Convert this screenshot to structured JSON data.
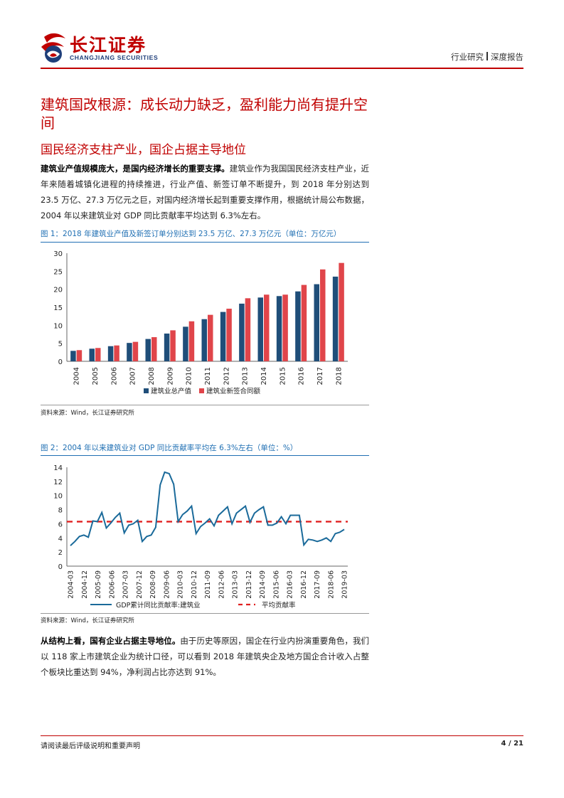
{
  "header": {
    "logo_cn": "长江证券",
    "logo_en": "CHANGJIANG SECURITIES",
    "section": "行业研究",
    "report_type": "深度报告",
    "accent_color": "#c00000"
  },
  "title": "建筑国改根源：成长动力缺乏，盈利能力尚有提升空间",
  "subtitle": "国民经济支柱产业，国企占据主导地位",
  "para1": {
    "lead": "建筑业产值规模庞大，是国内经济增长的重要支撑。",
    "body": "建筑业作为我国国民经济支柱产业，近年来随着城镇化进程的持续推进，行业产值、新签订单不断提升，到 2018 年分别达到 23.5 万亿、27.3 万亿元之巨，对国内经济增长起到重要支撑作用，根据统计局公布数据，2004 年以来建筑业对 GDP 同比贡献率平均达到 6.3%左右。"
  },
  "fig1": {
    "title": "图 1：2018 年建筑业产值及新签订单分别达到 23.5 万亿、27.3 万亿元（单位：万亿元）",
    "source": "资料来源：Wind，长江证券研究所"
  },
  "fig2": {
    "title": "图 2：2004 年以来建筑业对 GDP 同比贡献率平均在 6.3%左右（单位：%）",
    "source": "资料来源：Wind，长江证券研究所"
  },
  "para2": {
    "lead": "从结构上看，国有企业占据主导地位。",
    "body": "由于历史等原因，国企在行业内扮演重要角色，我们以 118 家上市建筑企业为统计口径，可以看到 2018 年建筑央企及地方国企合计收入占整个板块比重达到 94%，净利润占比亦达到 91%。"
  },
  "footer": {
    "disclaimer": "请阅读最后评级说明和重要声明",
    "page": "4 / 21"
  },
  "chart_data": [
    {
      "type": "bar",
      "categories": [
        "2004",
        "2005",
        "2006",
        "2007",
        "2008",
        "2009",
        "2010",
        "2011",
        "2012",
        "2013",
        "2014",
        "2015",
        "2016",
        "2017",
        "2018"
      ],
      "series": [
        {
          "name": "建筑业总产值",
          "color": "#1f4e79",
          "values": [
            2.9,
            3.5,
            4.2,
            5.1,
            6.2,
            7.7,
            9.6,
            11.7,
            13.7,
            16.0,
            17.7,
            18.1,
            19.4,
            21.4,
            23.5
          ]
        },
        {
          "name": "建筑业新签合同额",
          "color": "#e0454a",
          "values": [
            3.1,
            3.7,
            4.4,
            5.4,
            6.7,
            8.6,
            11.1,
            12.9,
            14.6,
            17.5,
            18.5,
            18.5,
            21.2,
            25.5,
            27.3
          ]
        }
      ],
      "ylim": [
        0,
        30
      ],
      "yticks": [
        0,
        5,
        10,
        15,
        20,
        25,
        30
      ],
      "grid": false,
      "legend": "bottom"
    },
    {
      "type": "line",
      "x_ticks": [
        "2004-03",
        "2004-12",
        "2005-09",
        "2006-06",
        "2007-03",
        "2007-12",
        "2008-09",
        "2009-06",
        "2010-03",
        "2010-12",
        "2011-09",
        "2012-06",
        "2013-03",
        "2013-12",
        "2014-09",
        "2015-06",
        "2016-03",
        "2016-12",
        "2017-09",
        "2018-06",
        "2019-03"
      ],
      "series": [
        {
          "name": "GDP累计同比贡献率:建筑业",
          "color": "#1a6a9a",
          "values": [
            2.9,
            3.5,
            4.2,
            4.4,
            4.1,
            6.4,
            6.3,
            7.6,
            5.4,
            6.1,
            6.9,
            7.5,
            4.7,
            5.8,
            6.0,
            6.5,
            3.5,
            4.2,
            4.4,
            5.5,
            11.5,
            13.3,
            13.1,
            11.6,
            6.3,
            7.3,
            7.8,
            8.5,
            4.6,
            5.6,
            6.1,
            6.7,
            5.7,
            7.2,
            7.8,
            8.4,
            6.0,
            7.5,
            8.0,
            8.5,
            6.2,
            7.5,
            8.0,
            8.4,
            5.8,
            5.8,
            6.1,
            7.0,
            6.0,
            7.2,
            7.2,
            7.2,
            3.0,
            3.8,
            3.7,
            3.5,
            3.7,
            4.0,
            3.5,
            4.6,
            4.8,
            5.2
          ]
        },
        {
          "name": "平均贡献率",
          "color": "#e02020",
          "dashed": true,
          "values": [
            6.3
          ]
        }
      ],
      "ylim": [
        0,
        14
      ],
      "yticks": [
        0,
        2,
        4,
        6,
        8,
        10,
        12,
        14
      ],
      "grid": false,
      "legend": "bottom"
    }
  ]
}
